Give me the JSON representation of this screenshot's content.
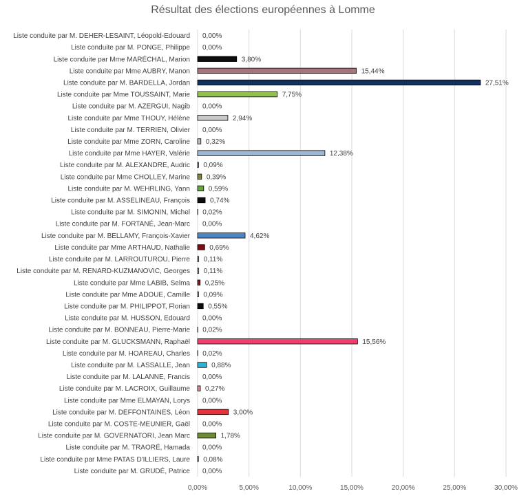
{
  "chart_data": {
    "type": "bar",
    "orientation": "horizontal",
    "title": "Résultat des élections européennes à Lomme",
    "xlabel": "",
    "ylabel": "",
    "xlim": [
      0,
      0.3
    ],
    "x_ticks": [
      "0,00%",
      "5,00%",
      "10,00%",
      "15,00%",
      "20,00%",
      "25,00%",
      "30,00%"
    ],
    "grid": "vertical",
    "legend": "none",
    "categories": [
      "Liste conduite par M. DEHER-LESAINT, Léopold-Edouard",
      "Liste conduite par M. PONGE, Philippe",
      "Liste conduite par Mme MARÉCHAL, Marion",
      "Liste conduite par Mme AUBRY, Manon",
      "Liste conduite par M. BARDELLA, Jordan",
      "Liste conduite par Mme TOUSSAINT, Marie",
      "Liste conduite par M. AZERGUI, Nagib",
      "Liste conduite par Mme THOUY, Hélène",
      "Liste conduite par M. TERRIEN, Olivier",
      "Liste conduite par Mme ZORN, Caroline",
      "Liste conduite par Mme HAYER, Valérie",
      "Liste conduite par M. ALEXANDRE, Audric",
      "Liste conduite par Mme CHOLLEY, Marine",
      "Liste conduite par M. WEHRLING, Yann",
      "Liste conduite par M. ASSELINEAU, François",
      "Liste conduite par M. SIMONIN, Michel",
      "Liste conduite par M. FORTANÉ, Jean-Marc",
      "Liste conduite par M. BELLAMY, François-Xavier",
      "Liste conduite par Mme ARTHAUD, Nathalie",
      "Liste conduite par M. LARROUTUROU, Pierre",
      "Liste conduite par M. RENARD-KUZMANOVIC, Georges",
      "Liste conduite par Mme LABIB, Selma",
      "Liste conduite par Mme ADOUE, Camille",
      "Liste conduite par M. PHILIPPOT, Florian",
      "Liste conduite par M. HUSSON, Edouard",
      "Liste conduite par M. BONNEAU, Pierre-Marie",
      "Liste conduite par M. GLUCKSMANN, Raphaël",
      "Liste conduite par M. HOAREAU, Charles",
      "Liste conduite par M. LASSALLE, Jean",
      "Liste conduite par M. LALANNE, Francis",
      "Liste conduite par M. LACROIX, Guillaume",
      "Liste conduite par Mme ELMAYAN, Lorys",
      "Liste conduite par M. DEFFONTAINES, Léon",
      "Liste conduite par M. COSTE-MEUNIER, Gaël",
      "Liste conduite par M. GOVERNATORI, Jean Marc",
      "Liste conduite par M. TRAORÉ, Hamada",
      "Liste conduite par Mme PATAS D'ILLIERS, Laure",
      "Liste conduite par M. GRUDÉ, Patrice"
    ],
    "values": [
      0.0,
      0.0,
      3.8,
      15.44,
      27.51,
      7.75,
      0.0,
      2.94,
      0.0,
      0.32,
      12.38,
      0.09,
      0.39,
      0.59,
      0.74,
      0.02,
      0.0,
      4.62,
      0.69,
      0.11,
      0.11,
      0.25,
      0.09,
      0.55,
      0.0,
      0.02,
      15.56,
      0.02,
      0.88,
      0.0,
      0.27,
      0.0,
      3.0,
      0.0,
      1.78,
      0.0,
      0.08,
      0.0
    ],
    "value_labels": [
      "0,00%",
      "0,00%",
      "3,80%",
      "15,44%",
      "27,51%",
      "7,75%",
      "0,00%",
      "2,94%",
      "0,00%",
      "0,32%",
      "12,38%",
      "0,09%",
      "0,39%",
      "0,59%",
      "0,74%",
      "0,02%",
      "0,00%",
      "4,62%",
      "0,69%",
      "0,11%",
      "0,11%",
      "0,25%",
      "0,09%",
      "0,55%",
      "0,00%",
      "0,02%",
      "15,56%",
      "0,02%",
      "0,88%",
      "0,00%",
      "0,27%",
      "0,00%",
      "3,00%",
      "0,00%",
      "1,78%",
      "0,00%",
      "0,08%",
      "0,00%"
    ],
    "colors": [
      "#ffffff",
      "#ffffff",
      "#0d0d0d",
      "#a5757b",
      "#14305e",
      "#92c14f",
      "#ffffff",
      "#c9c9c9",
      "#ffffff",
      "#bfbfbf",
      "#9fb7d6",
      "#c0c0c0",
      "#7e8b3c",
      "#6aa342",
      "#0d0d0d",
      "#ffffff",
      "#ffffff",
      "#4a86c5",
      "#7a0f16",
      "#d9d9d9",
      "#ffffff",
      "#8b1a1a",
      "#ffffff",
      "#0d0d0d",
      "#ffffff",
      "#ffffff",
      "#ee3f6e",
      "#ffffff",
      "#27b5d1",
      "#ffffff",
      "#d98d98",
      "#ffffff",
      "#e8313a",
      "#ffffff",
      "#6d8a35",
      "#ffffff",
      "#ffffff",
      "#ffffff"
    ]
  }
}
